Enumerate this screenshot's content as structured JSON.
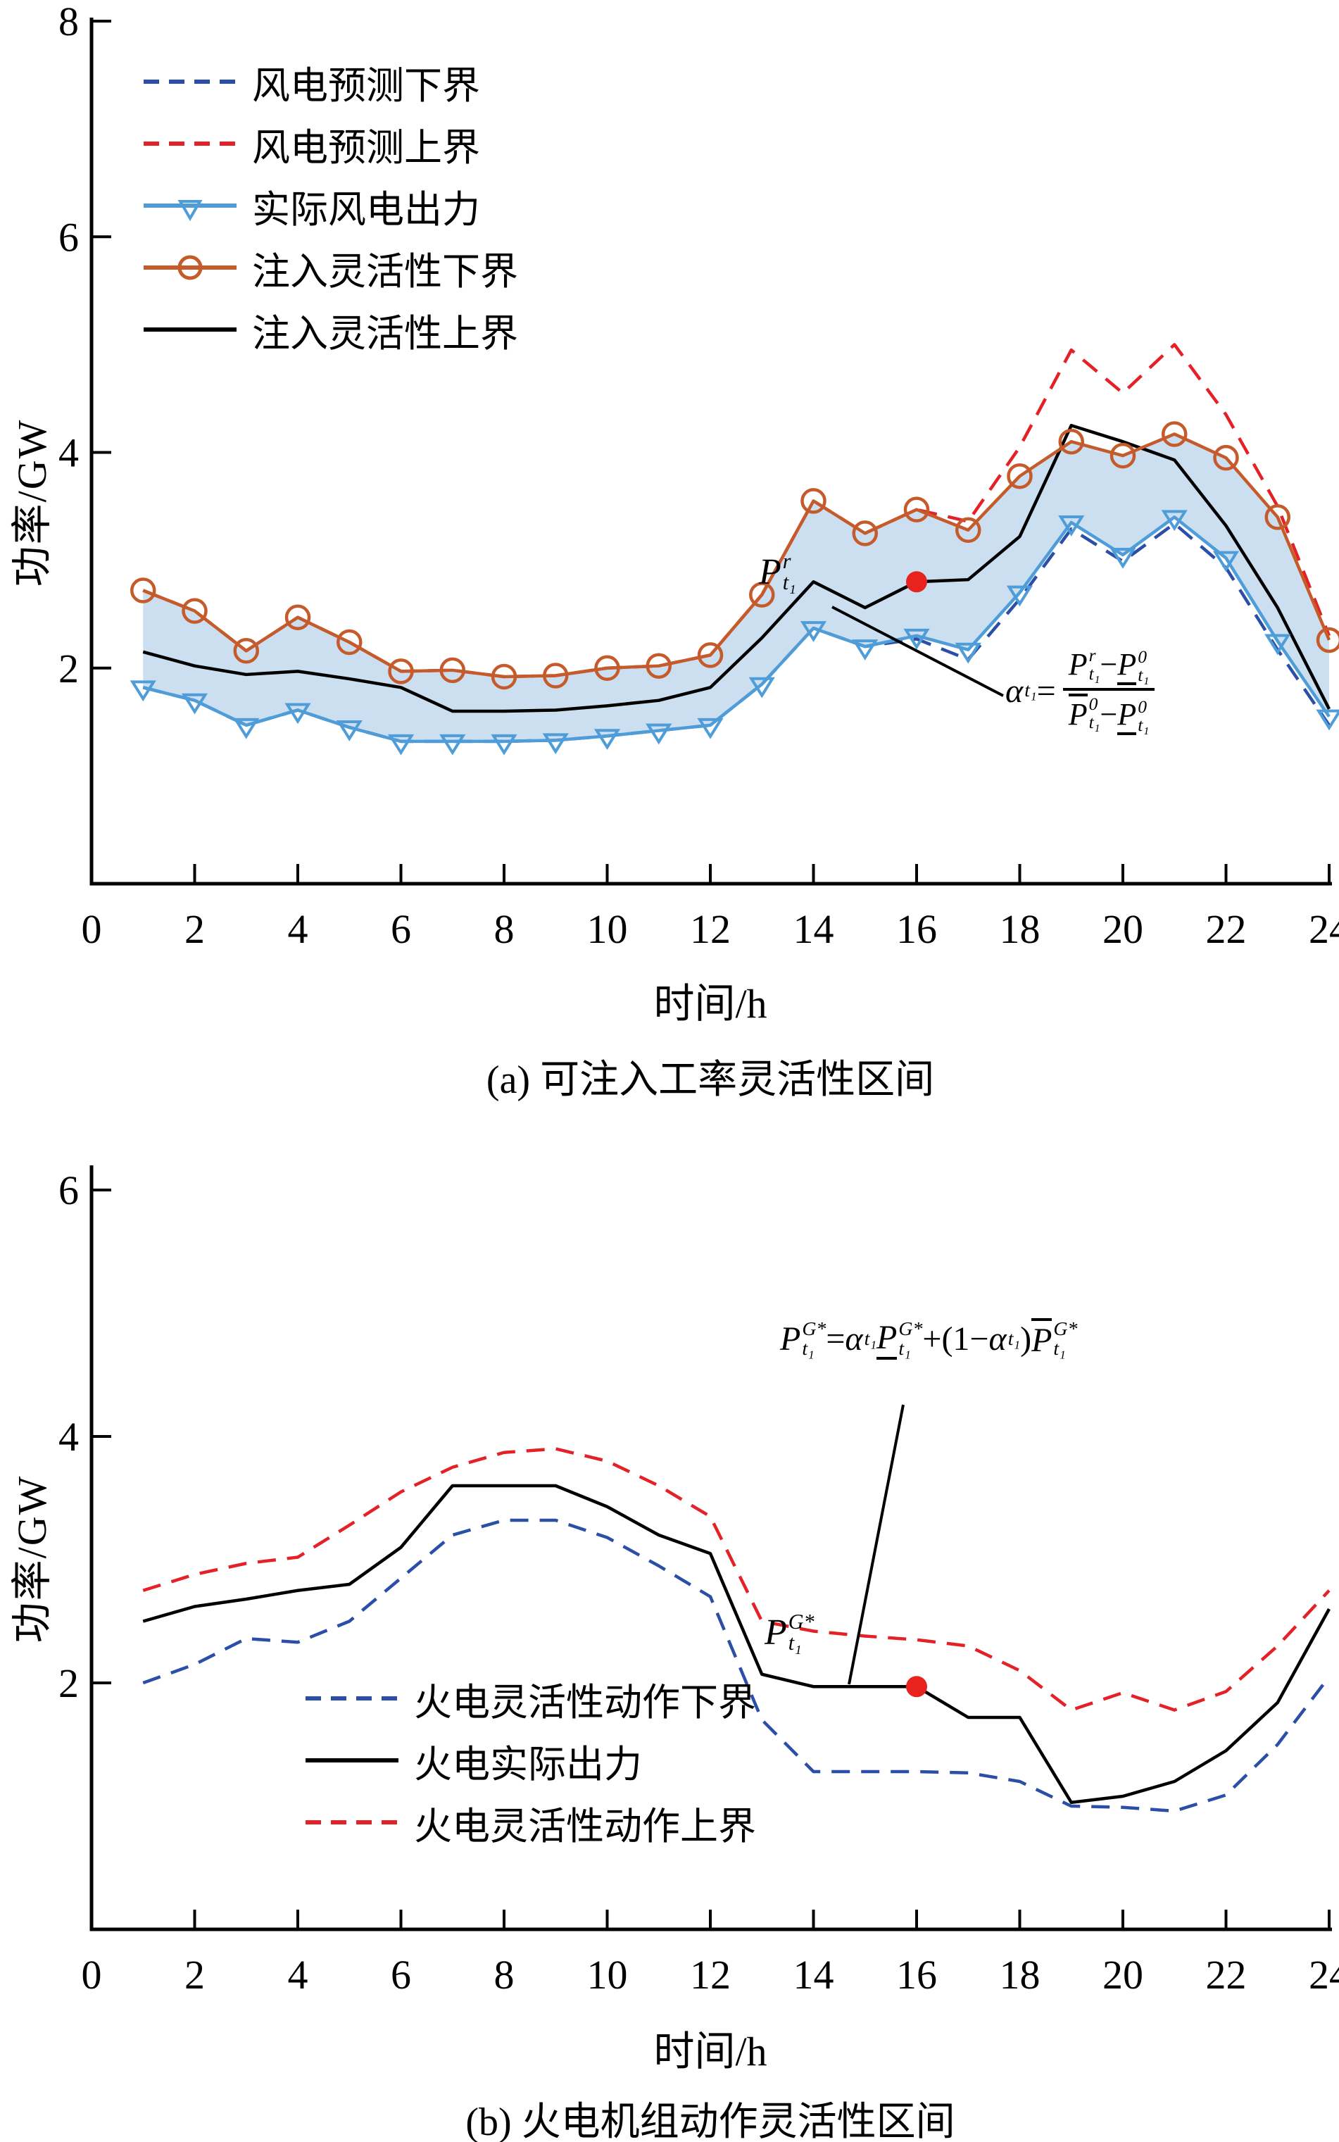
{
  "figure": {
    "background": "#ffffff"
  },
  "chart_data": [
    {
      "id": "a",
      "type": "line",
      "caption": "(a) 可注入工率灵活性区间",
      "xlabel": "时间/h",
      "ylabel": "功率/GW",
      "xlim": [
        0,
        24
      ],
      "ylim": [
        0,
        8
      ],
      "xticks": [
        0,
        2,
        4,
        6,
        8,
        10,
        12,
        14,
        16,
        18,
        20,
        22,
        24
      ],
      "yticks": [
        2,
        4,
        6,
        8
      ],
      "grid": false,
      "legend_position": "top-left-inside",
      "x": [
        1,
        2,
        3,
        4,
        5,
        6,
        7,
        8,
        9,
        10,
        11,
        12,
        13,
        14,
        15,
        16,
        17,
        18,
        19,
        20,
        21,
        22,
        23,
        24
      ],
      "series": [
        {
          "name": "风电预测下界",
          "color": "#2B4FA7",
          "dash": true,
          "marker": null,
          "z": 1,
          "values": [
            1.82,
            1.7,
            1.47,
            1.61,
            1.45,
            1.32,
            1.32,
            1.32,
            1.33,
            1.37,
            1.42,
            1.47,
            1.85,
            2.37,
            2.2,
            2.27,
            2.08,
            2.64,
            3.29,
            2.99,
            3.34,
            2.93,
            2.17,
            1.47
          ]
        },
        {
          "name": "风电预测上界",
          "color": "#E32126",
          "dash": true,
          "marker": null,
          "z": 2,
          "values": [
            2.72,
            2.53,
            2.16,
            2.47,
            2.24,
            1.97,
            1.98,
            1.92,
            1.93,
            2.0,
            2.02,
            2.12,
            2.68,
            3.55,
            3.25,
            3.47,
            3.36,
            4.05,
            4.95,
            4.55,
            5.0,
            4.35,
            3.5,
            2.3
          ]
        },
        {
          "name": "实际风电出力",
          "color": "#4E9DD8",
          "dash": false,
          "marker": "triangle-down",
          "z": 6,
          "values": [
            1.82,
            1.7,
            1.47,
            1.61,
            1.45,
            1.32,
            1.32,
            1.32,
            1.33,
            1.37,
            1.42,
            1.47,
            1.85,
            2.37,
            2.2,
            2.3,
            2.17,
            2.7,
            3.35,
            3.05,
            3.4,
            3.02,
            2.25,
            1.55
          ]
        },
        {
          "name": "注入灵活性下界",
          "color": "#C55A2B",
          "dash": false,
          "marker": "circle",
          "z": 5,
          "values": [
            2.72,
            2.53,
            2.16,
            2.47,
            2.24,
            1.97,
            1.98,
            1.92,
            1.93,
            2.0,
            2.02,
            2.12,
            2.68,
            3.55,
            3.25,
            3.47,
            3.28,
            3.78,
            4.1,
            3.97,
            4.17,
            3.95,
            3.4,
            2.26
          ]
        },
        {
          "name": "注入灵活性上界",
          "color": "#000000",
          "dash": false,
          "marker": null,
          "z": 4,
          "values": [
            2.15,
            2.02,
            1.94,
            1.97,
            1.9,
            1.82,
            1.6,
            1.6,
            1.61,
            1.65,
            1.7,
            1.82,
            2.28,
            2.8,
            2.56,
            2.8,
            2.82,
            3.22,
            4.25,
            4.1,
            3.93,
            3.32,
            2.56,
            1.62
          ]
        }
      ],
      "fill_between": {
        "upper": "注入灵活性下界",
        "lower": "实际风电出力",
        "color": "#CBDFF0"
      },
      "point_marker": {
        "x": 16,
        "y": 2.8,
        "color": "#E8231F"
      }
    },
    {
      "id": "b",
      "type": "line",
      "caption": "(b) 火电机组动作灵活性区间",
      "xlabel": "时间/h",
      "ylabel": "功率/GW",
      "xlim": [
        0,
        24
      ],
      "ylim": [
        0,
        6
      ],
      "xticks": [
        0,
        2,
        4,
        6,
        8,
        10,
        12,
        14,
        16,
        18,
        20,
        22,
        24
      ],
      "yticks": [
        2,
        4,
        6
      ],
      "grid": false,
      "legend_position": "left-inside",
      "x": [
        1,
        2,
        3,
        4,
        5,
        6,
        7,
        8,
        9,
        10,
        11,
        12,
        13,
        14,
        15,
        16,
        17,
        18,
        19,
        20,
        21,
        22,
        23,
        24
      ],
      "series": [
        {
          "name": "火电灵活性动作下界",
          "color": "#2B4FA7",
          "dash": true,
          "marker": null,
          "z": 1,
          "values": [
            2.0,
            2.15,
            2.36,
            2.33,
            2.5,
            2.85,
            3.2,
            3.32,
            3.32,
            3.18,
            2.95,
            2.7,
            1.7,
            1.28,
            1.28,
            1.28,
            1.27,
            1.2,
            1.0,
            0.99,
            0.96,
            1.09,
            1.5,
            2.05
          ]
        },
        {
          "name": "火电实际出力",
          "color": "#000000",
          "dash": false,
          "marker": null,
          "z": 3,
          "values": [
            2.5,
            2.62,
            2.68,
            2.75,
            2.8,
            3.1,
            3.6,
            3.6,
            3.6,
            3.43,
            3.2,
            3.05,
            2.07,
            1.97,
            1.97,
            1.97,
            1.72,
            1.72,
            1.03,
            1.08,
            1.2,
            1.45,
            1.84,
            2.6
          ]
        },
        {
          "name": "火电灵活性动作上界",
          "color": "#E32126",
          "dash": true,
          "marker": null,
          "z": 2,
          "values": [
            2.75,
            2.88,
            2.97,
            3.02,
            3.28,
            3.55,
            3.75,
            3.87,
            3.9,
            3.8,
            3.6,
            3.35,
            2.5,
            2.42,
            2.38,
            2.35,
            2.3,
            2.1,
            1.78,
            1.92,
            1.78,
            1.93,
            2.3,
            2.75
          ]
        }
      ],
      "fill_between": null,
      "point_marker": {
        "x": 16,
        "y": 1.97,
        "color": "#E8231F"
      }
    }
  ],
  "annotations": {
    "a": {
      "point_label_tokens": [
        {
          "b": "P",
          "sup": "r",
          "sub": "t₁"
        }
      ],
      "alpha_lhs_tokens": [
        {
          "b": "α",
          "sub": "t₁"
        },
        {
          "b": "=",
          "up": 1
        }
      ],
      "frac_num_tokens": [
        {
          "b": "P",
          "sup": "r",
          "sub": "t₁"
        },
        {
          "b": "−",
          "up": 1
        },
        {
          "b": "P",
          "sup": "0",
          "sub": "t₁",
          "ul": 1
        }
      ],
      "frac_den_tokens": [
        {
          "b": "P",
          "sup": "0",
          "sub": "t₁",
          "ol": 1
        },
        {
          "b": "−",
          "up": 1
        },
        {
          "b": "P",
          "sup": "0",
          "sub": "t₁",
          "ul": 1
        }
      ]
    },
    "b": {
      "formula_tokens": [
        {
          "b": "P",
          "sup": "G*",
          "sub": "t₁"
        },
        {
          "b": "=",
          "up": 1
        },
        {
          "b": "α",
          "sub": "t₁"
        },
        {
          "b": "P",
          "sup": "G*",
          "sub": "t₁",
          "ul": 1
        },
        {
          "b": "+(1−",
          "up": 1
        },
        {
          "b": "α",
          "sub": "t₁"
        },
        {
          "b": ")",
          "up": 1
        },
        {
          "b": "P",
          "sup": "G*",
          "sub": "t₁",
          "ol": 1
        }
      ],
      "point_label_tokens": [
        {
          "b": "P",
          "sup": "G*",
          "sub": "t₁"
        }
      ]
    }
  }
}
